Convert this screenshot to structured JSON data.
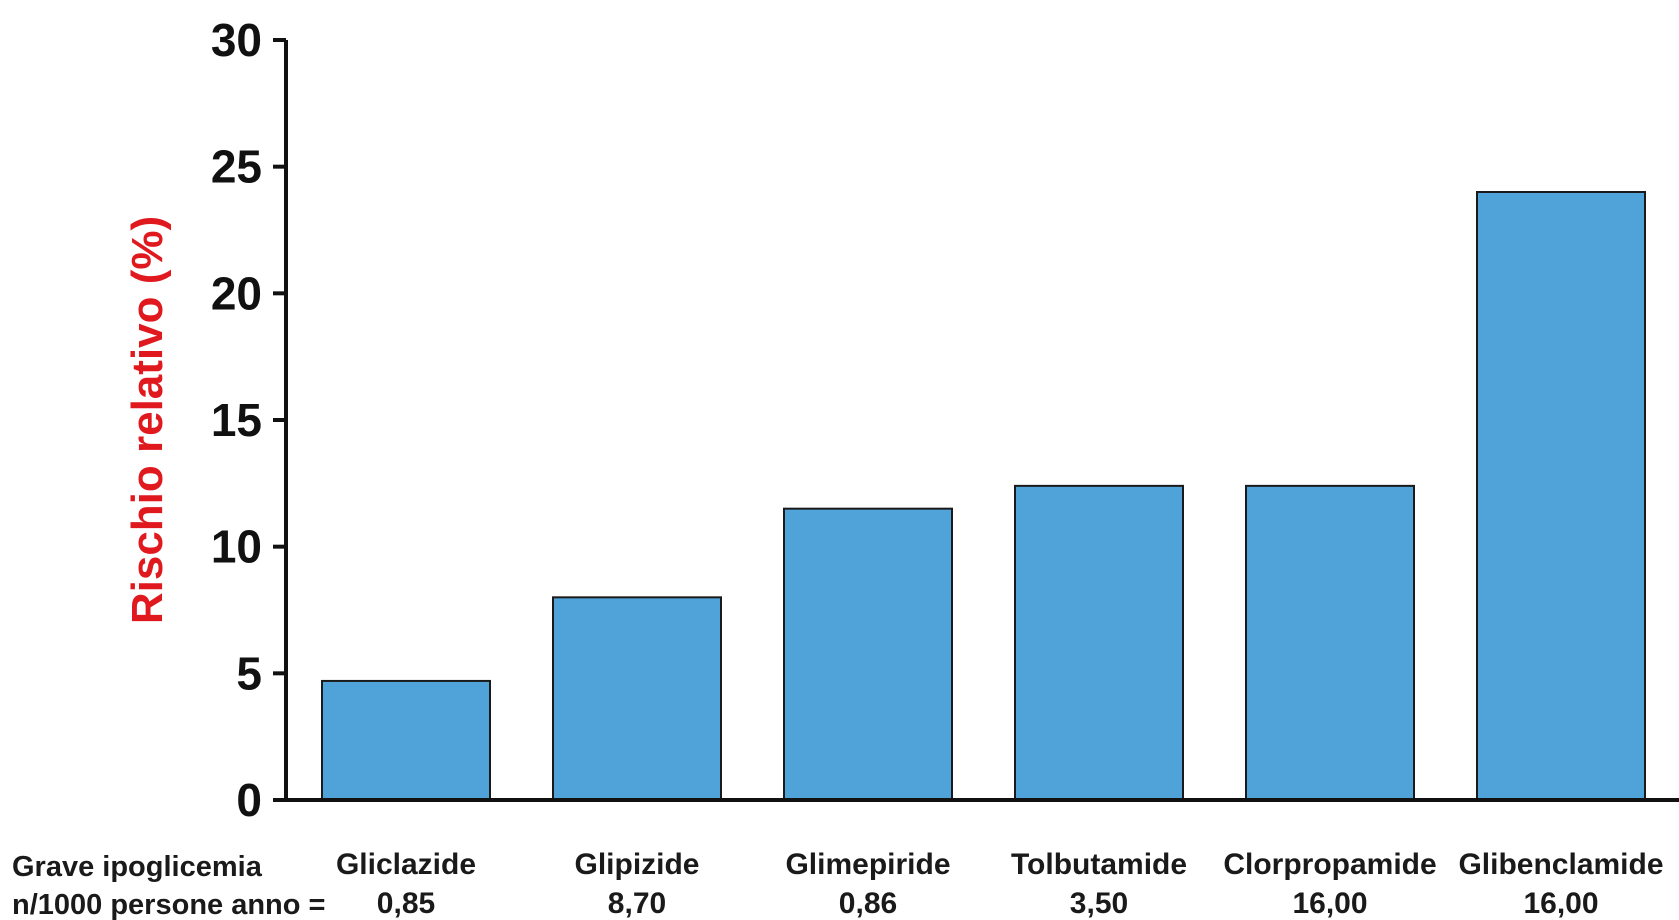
{
  "chart_data": {
    "type": "bar",
    "ylabel": "Rischio relativo (%)",
    "ylim": [
      0,
      30
    ],
    "yticks": [
      0,
      5,
      10,
      15,
      20,
      25,
      30
    ],
    "categories": [
      "Gliclazide",
      "Glipizide",
      "Glimepiride",
      "Tolbutamide",
      "Clorpropamide",
      "Glibenclamide"
    ],
    "values": [
      4.7,
      8.0,
      11.5,
      12.4,
      12.4,
      24.0
    ],
    "secondary_row": {
      "label_line1": "Grave ipoglicemia",
      "label_line2": "n/1000 persone anno =",
      "values": [
        "0,85",
        "8,70",
        "0,86",
        "3,50",
        "16,00",
        "16,00"
      ]
    },
    "colors": {
      "bar": "#4fa3d9",
      "bar_edge": "#1a1a1a",
      "axis": "#111111",
      "ylabel": "#e0191f"
    },
    "grid": false,
    "legend": "none"
  }
}
